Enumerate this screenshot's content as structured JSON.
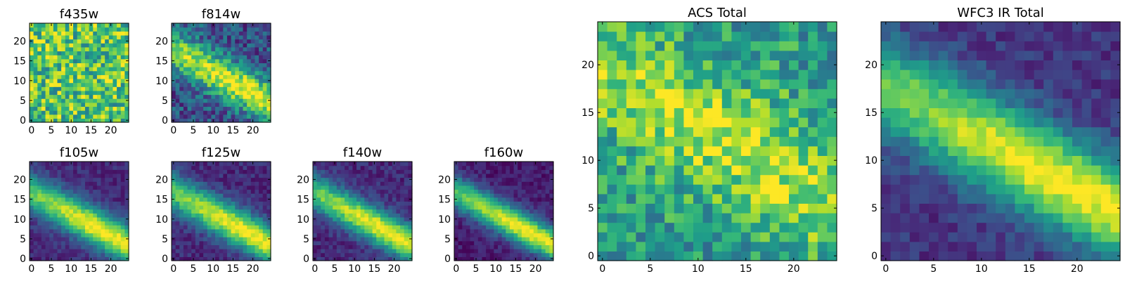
{
  "chart_data": [
    {
      "type": "heatmap",
      "title": "f435w",
      "colormap": "viridis",
      "grid_size": 25,
      "xlim": [
        0,
        24
      ],
      "ylim": [
        0,
        24
      ],
      "xticks": [
        "0",
        "5",
        "10",
        "15",
        "20"
      ],
      "yticks": [
        "0",
        "5",
        "10",
        "15",
        "20"
      ],
      "pattern": {
        "mode": "noise",
        "base": 0.72,
        "noise": 0.3,
        "seed": 11
      }
    },
    {
      "type": "heatmap",
      "title": "f814w",
      "colormap": "viridis",
      "grid_size": 25,
      "xlim": [
        0,
        24
      ],
      "ylim": [
        0,
        24
      ],
      "xticks": [
        "0",
        "5",
        "10",
        "15",
        "20"
      ],
      "yticks": [
        "0",
        "5",
        "10",
        "15",
        "20"
      ],
      "pattern": {
        "mode": "band",
        "base": 0.25,
        "amp": 0.75,
        "width": 3.2,
        "cx": 16,
        "cy": 9,
        "slope": -0.55,
        "noise": 0.2,
        "seed": 23
      }
    },
    {
      "type": "heatmap",
      "title": "f105w",
      "colormap": "viridis",
      "grid_size": 25,
      "xlim": [
        0,
        24
      ],
      "ylim": [
        0,
        24
      ],
      "xticks": [
        "0",
        "5",
        "10",
        "15",
        "20"
      ],
      "yticks": [
        "0",
        "5",
        "10",
        "15",
        "20"
      ],
      "pattern": {
        "mode": "band",
        "base": 0.12,
        "amp": 0.88,
        "width": 3.0,
        "cx": 18,
        "cy": 7,
        "slope": -0.55,
        "noise": 0.08,
        "seed": 31
      }
    },
    {
      "type": "heatmap",
      "title": "f125w",
      "colormap": "viridis",
      "grid_size": 25,
      "xlim": [
        0,
        24
      ],
      "ylim": [
        0,
        24
      ],
      "xticks": [
        "0",
        "5",
        "10",
        "15",
        "20"
      ],
      "yticks": [
        "0",
        "5",
        "10",
        "15",
        "20"
      ],
      "pattern": {
        "mode": "band",
        "base": 0.12,
        "amp": 0.88,
        "width": 3.0,
        "cx": 18,
        "cy": 7,
        "slope": -0.55,
        "noise": 0.09,
        "seed": 37
      }
    },
    {
      "type": "heatmap",
      "title": "f140w",
      "colormap": "viridis",
      "grid_size": 25,
      "xlim": [
        0,
        24
      ],
      "ylim": [
        0,
        24
      ],
      "xticks": [
        "0",
        "5",
        "10",
        "15",
        "20"
      ],
      "yticks": [
        "0",
        "5",
        "10",
        "15",
        "20"
      ],
      "pattern": {
        "mode": "band",
        "base": 0.12,
        "amp": 0.88,
        "width": 2.8,
        "cx": 18,
        "cy": 7,
        "slope": -0.55,
        "noise": 0.09,
        "seed": 41
      }
    },
    {
      "type": "heatmap",
      "title": "f160w",
      "colormap": "viridis",
      "grid_size": 25,
      "xlim": [
        0,
        24
      ],
      "ylim": [
        0,
        24
      ],
      "xticks": [
        "0",
        "5",
        "10",
        "15",
        "20"
      ],
      "yticks": [
        "0",
        "5",
        "10",
        "15",
        "20"
      ],
      "pattern": {
        "mode": "band",
        "base": 0.08,
        "amp": 0.92,
        "width": 2.6,
        "cx": 18,
        "cy": 7,
        "slope": -0.55,
        "noise": 0.08,
        "seed": 43
      }
    },
    {
      "type": "heatmap",
      "title": "ACS Total",
      "colormap": "viridis",
      "grid_size": 25,
      "xlim": [
        0,
        24
      ],
      "ylim": [
        0,
        24
      ],
      "xticks": [
        "0",
        "5",
        "10",
        "15",
        "20"
      ],
      "yticks": [
        "0",
        "5",
        "10",
        "15",
        "20"
      ],
      "pattern": {
        "mode": "band",
        "base": 0.55,
        "amp": 0.35,
        "width": 4.0,
        "cx": 15,
        "cy": 11,
        "slope": -0.55,
        "noise": 0.22,
        "seed": 53
      }
    },
    {
      "type": "heatmap",
      "title": "WFC3 IR Total",
      "colormap": "viridis",
      "grid_size": 25,
      "xlim": [
        0,
        24
      ],
      "ylim": [
        0,
        24
      ],
      "xticks": [
        "0",
        "5",
        "10",
        "15",
        "20"
      ],
      "yticks": [
        "0",
        "5",
        "10",
        "15",
        "20"
      ],
      "pattern": {
        "mode": "band",
        "base": 0.15,
        "amp": 0.85,
        "width": 3.2,
        "cx": 18,
        "cy": 8,
        "slope": -0.55,
        "noise": 0.09,
        "seed": 61
      }
    }
  ]
}
